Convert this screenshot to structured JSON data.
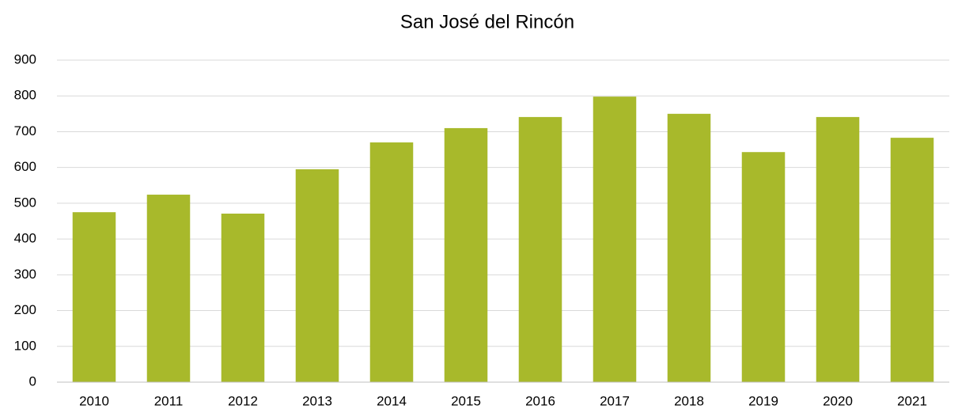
{
  "chart_data": {
    "type": "bar",
    "title": "San José del Rincón",
    "categories": [
      "2010",
      "2011",
      "2012",
      "2013",
      "2014",
      "2015",
      "2016",
      "2017",
      "2018",
      "2019",
      "2020",
      "2021"
    ],
    "values": [
      475,
      524,
      471,
      595,
      670,
      710,
      741,
      798,
      750,
      643,
      741,
      683
    ],
    "color": "#a8b92b",
    "ylim": [
      0,
      900
    ],
    "yticks": [
      0,
      100,
      200,
      300,
      400,
      500,
      600,
      700,
      800,
      900
    ],
    "grid": true
  }
}
